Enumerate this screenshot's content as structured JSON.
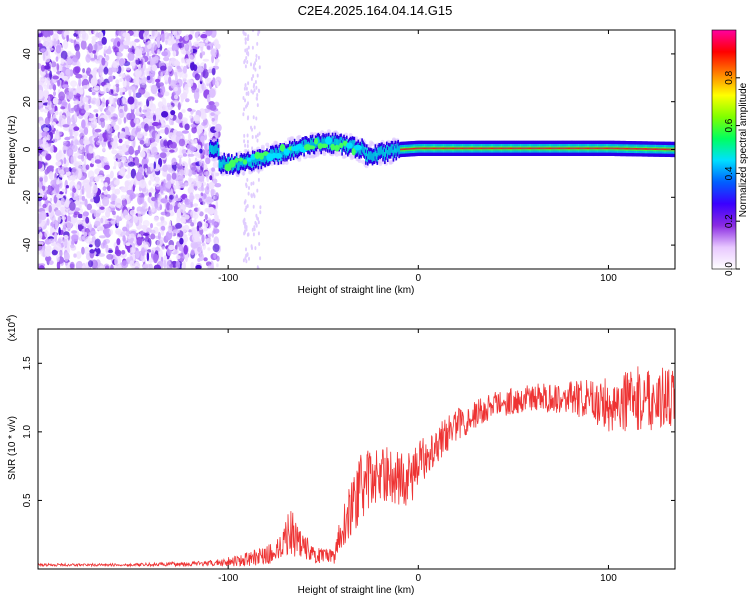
{
  "title": "C2E4.2025.164.04.14.G15",
  "chart_data": [
    {
      "type": "heatmap",
      "xlabel": "Height of straight line (km)",
      "ylabel": "Frequency (Hz)",
      "xlim": [
        -200,
        135
      ],
      "ylim": [
        -50,
        50
      ],
      "xticks": [
        -100,
        0,
        100
      ],
      "yticks": [
        -40,
        -20,
        0,
        20,
        40
      ],
      "colorbar": {
        "label": "Normalized spectral amplitude",
        "range": [
          0,
          1
        ],
        "ticks": [
          0.0,
          0.2,
          0.4,
          0.6,
          0.8
        ],
        "colors": [
          "#ffffff",
          "#e8c8ff",
          "#8a2be2",
          "#3a00ff",
          "#0060ff",
          "#00e0ff",
          "#00ff60",
          "#80ff00",
          "#ffff00",
          "#ff8000",
          "#ff0000",
          "#ff00a0"
        ]
      },
      "noise_region_end_km": -105,
      "ridge": [
        {
          "x": -105,
          "y": -6
        },
        {
          "x": -95,
          "y": -6
        },
        {
          "x": -85,
          "y": -4
        },
        {
          "x": -75,
          "y": -2
        },
        {
          "x": -65,
          "y": 0
        },
        {
          "x": -55,
          "y": 2
        },
        {
          "x": -48,
          "y": 3
        },
        {
          "x": -40,
          "y": 2
        },
        {
          "x": -35,
          "y": 1
        },
        {
          "x": -30,
          "y": 0
        },
        {
          "x": -28,
          "y": -2
        },
        {
          "x": -22,
          "y": -2
        },
        {
          "x": -15,
          "y": -1
        },
        {
          "x": -10,
          "y": 0
        },
        {
          "x": 0,
          "y": 0.5
        },
        {
          "x": 50,
          "y": 0.5
        },
        {
          "x": 100,
          "y": 0.5
        },
        {
          "x": 135,
          "y": 0
        }
      ]
    },
    {
      "type": "line",
      "xlabel": "Height of straight line (km)",
      "ylabel": "SNR (10 * v/v)",
      "yscale_label": "(x10",
      "yscale_exp": "4",
      "xlim": [
        -200,
        135
      ],
      "ylim": [
        0,
        1.75
      ],
      "xticks": [
        -100,
        0,
        100
      ],
      "yticks": [
        0.5,
        1.0,
        1.5
      ],
      "color": "#ee3333",
      "envelope": [
        {
          "x": -200,
          "y": 0.03,
          "a": 0.01
        },
        {
          "x": -150,
          "y": 0.03,
          "a": 0.01
        },
        {
          "x": -110,
          "y": 0.04,
          "a": 0.02
        },
        {
          "x": -90,
          "y": 0.07,
          "a": 0.05
        },
        {
          "x": -75,
          "y": 0.12,
          "a": 0.08
        },
        {
          "x": -68,
          "y": 0.28,
          "a": 0.18
        },
        {
          "x": -62,
          "y": 0.2,
          "a": 0.12
        },
        {
          "x": -55,
          "y": 0.1,
          "a": 0.06
        },
        {
          "x": -45,
          "y": 0.08,
          "a": 0.06
        },
        {
          "x": -40,
          "y": 0.3,
          "a": 0.15
        },
        {
          "x": -30,
          "y": 0.6,
          "a": 0.25
        },
        {
          "x": -20,
          "y": 0.7,
          "a": 0.2
        },
        {
          "x": -5,
          "y": 0.65,
          "a": 0.2
        },
        {
          "x": 5,
          "y": 0.85,
          "a": 0.15
        },
        {
          "x": 20,
          "y": 1.05,
          "a": 0.12
        },
        {
          "x": 40,
          "y": 1.2,
          "a": 0.1
        },
        {
          "x": 60,
          "y": 1.25,
          "a": 0.1
        },
        {
          "x": 80,
          "y": 1.25,
          "a": 0.12
        },
        {
          "x": 100,
          "y": 1.2,
          "a": 0.2
        },
        {
          "x": 120,
          "y": 1.25,
          "a": 0.25
        },
        {
          "x": 135,
          "y": 1.25,
          "a": 0.2
        }
      ]
    }
  ]
}
